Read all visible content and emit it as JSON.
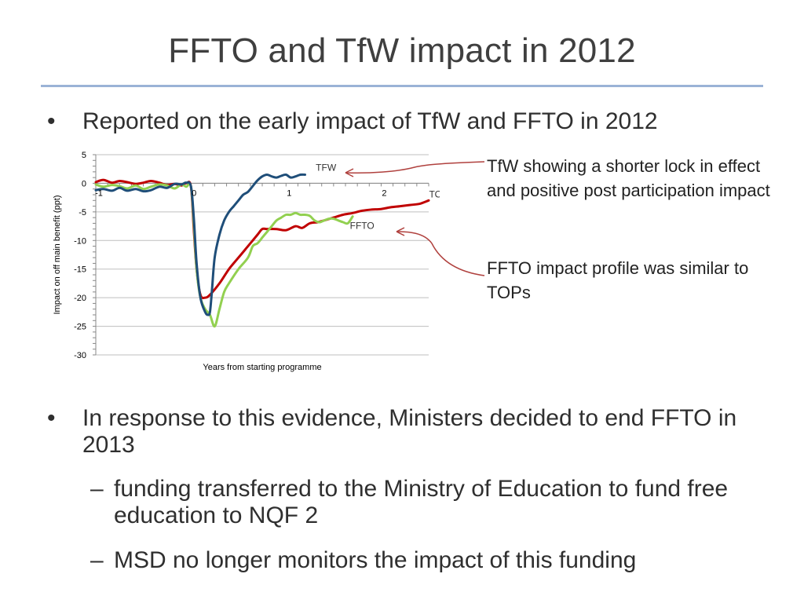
{
  "slide": {
    "title": "FFTO and TfW impact in 2012",
    "bullets": [
      {
        "text": "Reported on the early impact of TfW and FFTO in 2012"
      },
      {
        "text": "In response to this evidence, Ministers decided to end FFTO in 2013"
      }
    ],
    "sub_bullets": [
      {
        "text": "funding transferred to the Ministry of Education to fund free education to NQF 2"
      },
      {
        "text": "MSD no longer monitors the impact of this funding"
      }
    ],
    "bullet_glyph": "•",
    "dash_glyph": "–",
    "notes": {
      "tfw": "TfW showing a shorter lock in effect and positive post participation impact",
      "ffto": "FFTO impact profile was similar to TOPs"
    }
  },
  "colors": {
    "TOPs": "#c00000",
    "TFW": "#1f4e79",
    "FFTO": "#92d050",
    "title_rule": "#9bb3d6",
    "annotation_arrow": "#b0413e"
  },
  "chart_data": {
    "type": "line",
    "title": "",
    "xlabel": "Years from starting programme",
    "ylabel": "Impact on off main benefit (ppt)",
    "xlim": [
      -1,
      2.5
    ],
    "ylim": [
      -30,
      5
    ],
    "x_ticks": [
      -1,
      0,
      1,
      2
    ],
    "x_tick_labels": [
      "-1",
      "0",
      "1",
      "2"
    ],
    "y_ticks": [
      5,
      0,
      -5,
      -10,
      -15,
      -20,
      -25,
      -30
    ],
    "y_tick_labels": [
      "5",
      "0",
      "-5",
      "-10",
      "-15",
      "-20",
      "-25",
      "-30"
    ],
    "grid": "horizontal",
    "series": [
      {
        "name": "TOPs",
        "label": "TOPs",
        "x": [
          -1,
          -0.92,
          -0.83,
          -0.75,
          -0.67,
          -0.58,
          -0.5,
          -0.42,
          -0.33,
          -0.25,
          -0.17,
          -0.1,
          -0.05,
          0,
          0.03,
          0.06,
          0.1,
          0.15,
          0.2,
          0.3,
          0.4,
          0.5,
          0.6,
          0.7,
          0.75,
          0.8,
          0.9,
          1,
          1.1,
          1.17,
          1.25,
          1.33,
          1.4,
          1.5,
          1.6,
          1.7,
          1.8,
          1.9,
          2,
          2.1,
          2.2,
          2.3,
          2.4,
          2.5
        ],
        "y": [
          0.2,
          0.6,
          0.1,
          0.4,
          0.2,
          -0.1,
          0.1,
          0.4,
          0.1,
          -0.3,
          -0.1,
          -0.4,
          0,
          -0.5,
          -8,
          -15,
          -19.5,
          -20,
          -19.5,
          -17.5,
          -15,
          -13,
          -11,
          -9,
          -8,
          -8,
          -8,
          -8.2,
          -7.5,
          -7.8,
          -7,
          -6.8,
          -6.5,
          -6,
          -5.5,
          -5.2,
          -4.8,
          -4.6,
          -4.5,
          -4.2,
          -4,
          -3.8,
          -3.6,
          -3
        ]
      },
      {
        "name": "TFW",
        "label": "TFW",
        "x": [
          -1,
          -0.92,
          -0.83,
          -0.75,
          -0.67,
          -0.58,
          -0.5,
          -0.42,
          -0.33,
          -0.25,
          -0.17,
          -0.1,
          -0.05,
          0,
          0.03,
          0.06,
          0.1,
          0.15,
          0.18,
          0.2,
          0.22,
          0.25,
          0.3,
          0.35,
          0.4,
          0.45,
          0.5,
          0.55,
          0.6,
          0.65,
          0.7,
          0.75,
          0.8,
          0.85,
          0.9,
          0.95,
          1,
          1.05,
          1.1,
          1.15,
          1.2
        ],
        "y": [
          -1.2,
          -1,
          -1.3,
          -0.8,
          -1.3,
          -1,
          -1.4,
          -1.2,
          -0.6,
          -0.8,
          -0.1,
          -0.2,
          0.1,
          -0.5,
          -6,
          -14,
          -20,
          -22.5,
          -23,
          -22.5,
          -19,
          -13,
          -9,
          -6.5,
          -5,
          -4,
          -3,
          -2,
          -1.5,
          -0.5,
          0.5,
          1.2,
          1.5,
          1.2,
          1,
          1.3,
          1.5,
          1,
          1.2,
          1.5,
          1.5
        ]
      },
      {
        "name": "FFTO",
        "label": "FFTO",
        "x": [
          -1,
          -0.92,
          -0.83,
          -0.75,
          -0.67,
          -0.58,
          -0.5,
          -0.42,
          -0.33,
          -0.25,
          -0.17,
          -0.1,
          -0.05,
          0,
          0.03,
          0.06,
          0.1,
          0.15,
          0.2,
          0.25,
          0.3,
          0.35,
          0.4,
          0.5,
          0.6,
          0.65,
          0.7,
          0.75,
          0.8,
          0.85,
          0.9,
          0.95,
          1,
          1.05,
          1.1,
          1.15,
          1.2,
          1.25,
          1.3,
          1.35,
          1.4,
          1.45,
          1.5,
          1.55,
          1.6,
          1.65,
          1.7
        ],
        "y": [
          -0.2,
          -0.6,
          -0.3,
          -0.5,
          -0.9,
          -0.4,
          -1,
          -0.6,
          -0.2,
          -0.4,
          -0.9,
          -0.2,
          -0.6,
          -0.5,
          -7,
          -15,
          -20,
          -22,
          -23,
          -25,
          -22,
          -19,
          -17.5,
          -15,
          -13,
          -11,
          -10.5,
          -9.5,
          -8.5,
          -7.5,
          -6.5,
          -6,
          -5.5,
          -5.5,
          -5.2,
          -5.5,
          -5.5,
          -5.7,
          -6.5,
          -6.8,
          -6.5,
          -6.2,
          -6.2,
          -6.5,
          -6.8,
          -7,
          -5.8
        ]
      }
    ],
    "annotations": [
      {
        "text": "TFW",
        "x": 1.42,
        "y": 2.2
      },
      {
        "text": "FFTO",
        "x": 1.8,
        "y": -8
      },
      {
        "text": "TOPs",
        "x": 2.63,
        "y": -2.5
      }
    ]
  }
}
